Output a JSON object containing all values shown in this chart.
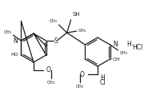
{
  "bg_color": "#ffffff",
  "line_color": "#1a1a1a",
  "line_width": 0.9,
  "figsize": [
    2.0,
    1.19
  ],
  "dpi": 100,
  "xlim": [
    0,
    200
  ],
  "ylim": [
    119,
    0
  ]
}
